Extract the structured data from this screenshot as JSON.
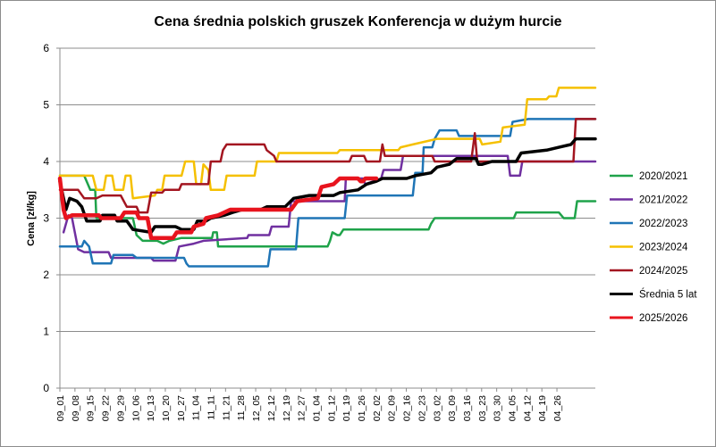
{
  "chart_data": {
    "type": "line",
    "title": "Cena średnia polskich gruszek Konferencja w dużym hurcie",
    "ylabel": "Cena [zł/kg]",
    "xlabel": "",
    "ylim": [
      0,
      6
    ],
    "yticks": [
      0,
      1,
      2,
      3,
      4,
      5,
      6
    ],
    "grid": "horizontal",
    "legend_position": "right",
    "x_tick_labels": [
      "09_01",
      "09_08",
      "09_15",
      "09_22",
      "09_29",
      "10_06",
      "10_13",
      "10_20",
      "10_27",
      "11_04",
      "11_11",
      "11_21",
      "11_28",
      "12_05",
      "12_12",
      "12_19",
      "12_27",
      "01_04",
      "01_12",
      "01_19",
      "01_26",
      "02_02",
      "02_09",
      "02_16",
      "02_23",
      "03_02",
      "03_09",
      "03_16",
      "03_23",
      "03_30",
      "04_05",
      "04_12",
      "04_19",
      "04_26"
    ],
    "series": [
      {
        "name": "2020/2021",
        "color": "#1fa34a",
        "width": 2.5,
        "points": [
          [
            0,
            3.75
          ],
          [
            2,
            3.75
          ],
          [
            2.5,
            3.5
          ],
          [
            2.9,
            3.5
          ],
          [
            3,
            3.0
          ],
          [
            6,
            3.0
          ],
          [
            6.3,
            2.7
          ],
          [
            6.8,
            2.6
          ],
          [
            8,
            2.6
          ],
          [
            8.5,
            2.55
          ],
          [
            9,
            2.6
          ],
          [
            10,
            2.65
          ],
          [
            12.5,
            2.65
          ],
          [
            12.6,
            2.75
          ],
          [
            12.9,
            2.75
          ],
          [
            13,
            2.5
          ],
          [
            22,
            2.5
          ],
          [
            22.2,
            2.6
          ],
          [
            22.4,
            2.75
          ],
          [
            22.8,
            2.7
          ],
          [
            23,
            2.7
          ],
          [
            23.3,
            2.8
          ],
          [
            30.3,
            2.8
          ],
          [
            30.5,
            2.9
          ],
          [
            30.8,
            3.0
          ],
          [
            37.3,
            3.0
          ],
          [
            37.5,
            3.1
          ],
          [
            41,
            3.1
          ],
          [
            41.4,
            3.0
          ],
          [
            42.3,
            3.0
          ],
          [
            42.5,
            3.3
          ],
          [
            44,
            3.3
          ]
        ]
      },
      {
        "name": "2021/2022",
        "color": "#7030a0",
        "width": 2.5,
        "points": [
          [
            0.3,
            2.75
          ],
          [
            0.7,
            3.05
          ],
          [
            1,
            3.0
          ],
          [
            1.5,
            2.45
          ],
          [
            2,
            2.4
          ],
          [
            4,
            2.4
          ],
          [
            4.2,
            2.3
          ],
          [
            7.5,
            2.3
          ],
          [
            7.7,
            2.25
          ],
          [
            9.5,
            2.25
          ],
          [
            9.8,
            2.5
          ],
          [
            11,
            2.55
          ],
          [
            11.8,
            2.6
          ],
          [
            15.4,
            2.65
          ],
          [
            15.5,
            2.7
          ],
          [
            17.2,
            2.7
          ],
          [
            17.4,
            2.85
          ],
          [
            18.8,
            2.85
          ],
          [
            19,
            3.3
          ],
          [
            23.4,
            3.3
          ],
          [
            23.5,
            3.7
          ],
          [
            24.9,
            3.7
          ],
          [
            25.1,
            3.6
          ],
          [
            26.4,
            3.7
          ],
          [
            26.6,
            3.85
          ],
          [
            28,
            3.85
          ],
          [
            28.2,
            4.1
          ],
          [
            36.8,
            4.1
          ],
          [
            37,
            3.75
          ],
          [
            37.8,
            3.75
          ],
          [
            38,
            4.0
          ],
          [
            44,
            4.0
          ]
        ]
      },
      {
        "name": "2022/2023",
        "color": "#1f75b6",
        "width": 2.5,
        "points": [
          [
            0,
            2.5
          ],
          [
            1.8,
            2.5
          ],
          [
            2,
            2.6
          ],
          [
            2.4,
            2.5
          ],
          [
            2.7,
            2.2
          ],
          [
            4.2,
            2.2
          ],
          [
            4.4,
            2.35
          ],
          [
            6,
            2.35
          ],
          [
            6.3,
            2.3
          ],
          [
            10.2,
            2.3
          ],
          [
            10.4,
            2.2
          ],
          [
            10.6,
            2.15
          ],
          [
            17.1,
            2.15
          ],
          [
            17.3,
            2.45
          ],
          [
            19.4,
            2.45
          ],
          [
            19.6,
            3.0
          ],
          [
            23.4,
            3.0
          ],
          [
            23.6,
            3.4
          ],
          [
            29,
            3.4
          ],
          [
            29.2,
            3.8
          ],
          [
            29.8,
            3.8
          ],
          [
            29.9,
            4.25
          ],
          [
            30.6,
            4.25
          ],
          [
            30.8,
            4.4
          ],
          [
            31.2,
            4.55
          ],
          [
            32.6,
            4.55
          ],
          [
            32.8,
            4.45
          ],
          [
            37,
            4.45
          ],
          [
            37.2,
            4.7
          ],
          [
            38.5,
            4.75
          ],
          [
            44,
            4.75
          ]
        ]
      },
      {
        "name": "2023/2024",
        "color": "#f5c000",
        "width": 2.5,
        "points": [
          [
            0,
            3.75
          ],
          [
            2.7,
            3.75
          ],
          [
            3,
            3.5
          ],
          [
            3.6,
            3.5
          ],
          [
            3.8,
            3.75
          ],
          [
            4.3,
            3.75
          ],
          [
            4.5,
            3.5
          ],
          [
            5.2,
            3.5
          ],
          [
            5.4,
            3.75
          ],
          [
            5.8,
            3.75
          ],
          [
            6,
            3.35
          ],
          [
            7.8,
            3.4
          ],
          [
            8,
            3.5
          ],
          [
            8.4,
            3.5
          ],
          [
            8.6,
            3.75
          ],
          [
            9.8,
            3.75
          ],
          [
            10,
            3.75
          ],
          [
            10.3,
            4.0
          ],
          [
            11,
            4.0
          ],
          [
            11.2,
            3.6
          ],
          [
            11.6,
            3.6
          ],
          [
            11.8,
            3.95
          ],
          [
            12.2,
            3.85
          ],
          [
            12.4,
            3.5
          ],
          [
            13.5,
            3.5
          ],
          [
            13.7,
            3.75
          ],
          [
            16,
            3.75
          ],
          [
            16.2,
            4.0
          ],
          [
            17.8,
            4.0
          ],
          [
            18,
            4.15
          ],
          [
            22.8,
            4.15
          ],
          [
            23,
            4.2
          ],
          [
            27.8,
            4.2
          ],
          [
            28,
            4.25
          ],
          [
            29,
            4.3
          ],
          [
            31,
            4.4
          ],
          [
            34.5,
            4.4
          ],
          [
            34.7,
            4.3
          ],
          [
            36.2,
            4.35
          ],
          [
            36.4,
            4.6
          ],
          [
            38.2,
            4.65
          ],
          [
            38.4,
            5.1
          ],
          [
            40,
            5.1
          ],
          [
            40.2,
            5.15
          ],
          [
            40.8,
            5.15
          ],
          [
            41,
            5.3
          ],
          [
            44,
            5.3
          ]
        ]
      },
      {
        "name": "2024/2025",
        "color": "#a31520",
        "width": 2.5,
        "points": [
          [
            0,
            3.5
          ],
          [
            1.5,
            3.5
          ],
          [
            2,
            3.35
          ],
          [
            3,
            3.35
          ],
          [
            3.5,
            3.4
          ],
          [
            5,
            3.4
          ],
          [
            5.5,
            3.2
          ],
          [
            6.3,
            3.2
          ],
          [
            6.5,
            3.1
          ],
          [
            7.2,
            3.1
          ],
          [
            7.5,
            3.45
          ],
          [
            8.4,
            3.45
          ],
          [
            8.6,
            3.5
          ],
          [
            9.8,
            3.5
          ],
          [
            10,
            3.6
          ],
          [
            12.2,
            3.6
          ],
          [
            12.4,
            4.0
          ],
          [
            13.2,
            4.0
          ],
          [
            13.4,
            4.2
          ],
          [
            13.7,
            4.3
          ],
          [
            16.8,
            4.3
          ],
          [
            17,
            4.2
          ],
          [
            17.6,
            4.1
          ],
          [
            17.8,
            4.0
          ],
          [
            23.8,
            4.0
          ],
          [
            24,
            4.1
          ],
          [
            25,
            4.1
          ],
          [
            25.2,
            4.0
          ],
          [
            26.3,
            4.0
          ],
          [
            26.5,
            4.3
          ],
          [
            26.7,
            4.1
          ],
          [
            30.6,
            4.1
          ],
          [
            30.8,
            4.0
          ],
          [
            33.8,
            4.0
          ],
          [
            34.1,
            4.5
          ],
          [
            34.3,
            4.0
          ],
          [
            42.2,
            4.0
          ],
          [
            42.4,
            4.75
          ],
          [
            44,
            4.75
          ]
        ]
      },
      {
        "name": "Średnia 5 lat",
        "color": "#000000",
        "width": 3.5,
        "points": [
          [
            0,
            3.65
          ],
          [
            0.5,
            3.15
          ],
          [
            0.8,
            3.35
          ],
          [
            1.4,
            3.3
          ],
          [
            1.8,
            3.2
          ],
          [
            2.2,
            2.95
          ],
          [
            3.3,
            2.95
          ],
          [
            3.5,
            3.05
          ],
          [
            4.5,
            3.05
          ],
          [
            4.7,
            2.95
          ],
          [
            5.5,
            2.95
          ],
          [
            6,
            2.8
          ],
          [
            7.5,
            2.75
          ],
          [
            7.8,
            2.85
          ],
          [
            9.5,
            2.85
          ],
          [
            10,
            2.8
          ],
          [
            11,
            2.8
          ],
          [
            11.3,
            2.95
          ],
          [
            12,
            2.95
          ],
          [
            12.4,
            3.0
          ],
          [
            13.5,
            3.05
          ],
          [
            14.2,
            3.1
          ],
          [
            15,
            3.15
          ],
          [
            16.5,
            3.15
          ],
          [
            17,
            3.2
          ],
          [
            18.5,
            3.2
          ],
          [
            19.2,
            3.35
          ],
          [
            20.5,
            3.4
          ],
          [
            22.5,
            3.4
          ],
          [
            23,
            3.45
          ],
          [
            24.5,
            3.5
          ],
          [
            25.2,
            3.6
          ],
          [
            26,
            3.65
          ],
          [
            26.5,
            3.7
          ],
          [
            28.5,
            3.7
          ],
          [
            29.2,
            3.75
          ],
          [
            30.5,
            3.8
          ],
          [
            31,
            3.9
          ],
          [
            32,
            3.95
          ],
          [
            32.6,
            4.05
          ],
          [
            34.2,
            4.05
          ],
          [
            34.4,
            3.95
          ],
          [
            34.7,
            3.95
          ],
          [
            35.5,
            4.0
          ],
          [
            37.5,
            4.0
          ],
          [
            37.9,
            4.15
          ],
          [
            40,
            4.2
          ],
          [
            41,
            4.25
          ],
          [
            42,
            4.3
          ],
          [
            42.4,
            4.4
          ],
          [
            44,
            4.4
          ]
        ]
      },
      {
        "name": "2025/2026",
        "color": "#e8141e",
        "width": 4.5,
        "points": [
          [
            0,
            3.7
          ],
          [
            0.3,
            3.15
          ],
          [
            0.5,
            3.0
          ],
          [
            1,
            3.05
          ],
          [
            3.2,
            3.05
          ],
          [
            3.4,
            3.0
          ],
          [
            5,
            3.0
          ],
          [
            5.3,
            3.1
          ],
          [
            6.3,
            3.1
          ],
          [
            6.5,
            3.0
          ],
          [
            7.2,
            3.0
          ],
          [
            7.5,
            2.65
          ],
          [
            9.3,
            2.65
          ],
          [
            9.6,
            2.75
          ],
          [
            10.8,
            2.75
          ],
          [
            11,
            2.85
          ],
          [
            11.8,
            2.9
          ],
          [
            12,
            3.0
          ],
          [
            13,
            3.05
          ],
          [
            13.5,
            3.1
          ],
          [
            14,
            3.15
          ],
          [
            19,
            3.15
          ],
          [
            19.5,
            3.3
          ],
          [
            21.2,
            3.35
          ],
          [
            21.5,
            3.55
          ],
          [
            22.5,
            3.6
          ],
          [
            23,
            3.7
          ],
          [
            24.5,
            3.7
          ],
          [
            24.7,
            3.65
          ],
          [
            24.9,
            3.65
          ],
          [
            25.1,
            3.7
          ],
          [
            26,
            3.7
          ]
        ]
      }
    ]
  }
}
